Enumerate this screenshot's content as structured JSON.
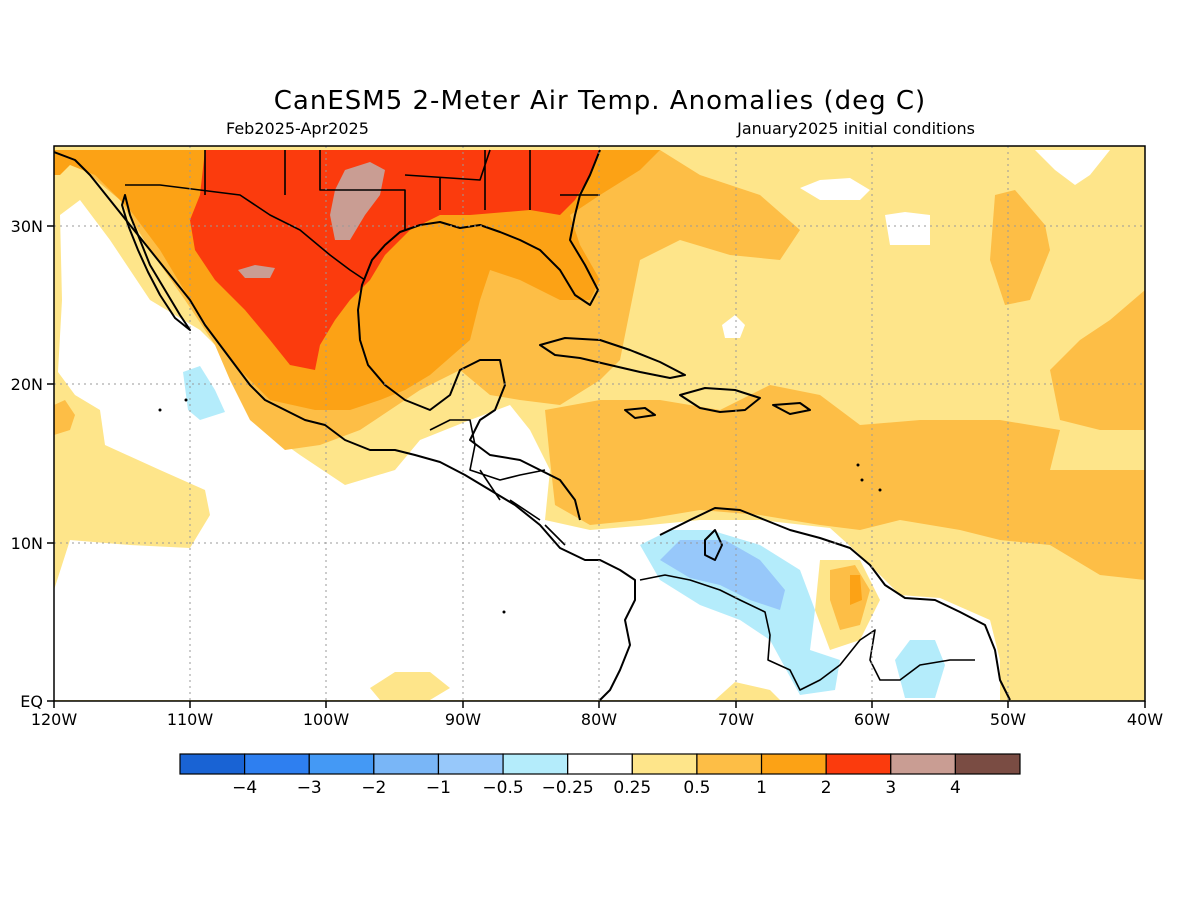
{
  "title": "CanESM5 2-Meter Air Temp. Anomalies (deg C)",
  "period": "Feb2025-Apr2025",
  "initial_conditions": "January2025 initial conditions",
  "axes": {
    "x_ticks": [
      "120W",
      "110W",
      "100W",
      "90W",
      "80W",
      "70W",
      "60W",
      "50W",
      "40W"
    ],
    "y_ticks": [
      "EQ",
      "10N",
      "20N",
      "30N"
    ]
  },
  "colorbar": {
    "colors": [
      "#1963d4",
      "#2e7ff0",
      "#4499f5",
      "#79b6f7",
      "#97c8fa",
      "#b4ecfb",
      "#ffffff",
      "#fee58a",
      "#fdbe46",
      "#fca215",
      "#fb3b0d",
      "#c99d93",
      "#7a4c43"
    ],
    "labels": [
      "-4",
      "-3",
      "-2",
      "-1",
      "-0.5",
      "-0.25",
      "0.25",
      "0.5",
      "1",
      "2",
      "3",
      "4"
    ]
  }
}
